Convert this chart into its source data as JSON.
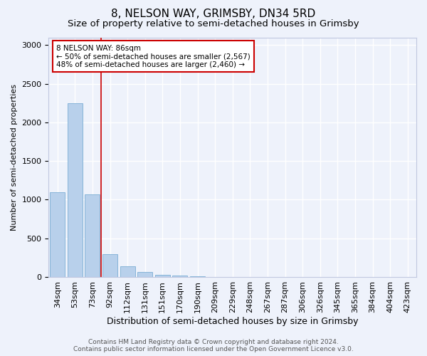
{
  "title": "8, NELSON WAY, GRIMSBY, DN34 5RD",
  "subtitle": "Size of property relative to semi-detached houses in Grimsby",
  "xlabel": "Distribution of semi-detached houses by size in Grimsby",
  "ylabel": "Number of semi-detached properties",
  "bar_labels": [
    "34sqm",
    "53sqm",
    "73sqm",
    "92sqm",
    "112sqm",
    "131sqm",
    "151sqm",
    "170sqm",
    "190sqm",
    "209sqm",
    "229sqm",
    "248sqm",
    "267sqm",
    "287sqm",
    "306sqm",
    "326sqm",
    "345sqm",
    "365sqm",
    "384sqm",
    "404sqm",
    "423sqm"
  ],
  "bar_values": [
    1100,
    2250,
    1070,
    295,
    140,
    60,
    30,
    15,
    8,
    4,
    2,
    1,
    0,
    0,
    0,
    0,
    0,
    0,
    0,
    0,
    0
  ],
  "bar_color": "#b8d0eb",
  "bar_edge_color": "#7aadd4",
  "vline_color": "#cc0000",
  "annotation_text": "8 NELSON WAY: 86sqm\n← 50% of semi-detached houses are smaller (2,567)\n48% of semi-detached houses are larger (2,460) →",
  "annotation_box_color": "#ffffff",
  "annotation_box_edge": "#cc0000",
  "ylim": [
    0,
    3100
  ],
  "yticks": [
    0,
    500,
    1000,
    1500,
    2000,
    2500,
    3000
  ],
  "footer_line1": "Contains HM Land Registry data © Crown copyright and database right 2024.",
  "footer_line2": "Contains public sector information licensed under the Open Government Licence v3.0.",
  "background_color": "#eef2fb",
  "plot_background": "#eef2fb",
  "grid_color": "#ffffff",
  "title_fontsize": 11,
  "subtitle_fontsize": 9.5,
  "xlabel_fontsize": 9,
  "ylabel_fontsize": 8,
  "tick_fontsize": 8,
  "footer_fontsize": 6.5,
  "annotation_fontsize": 7.5
}
